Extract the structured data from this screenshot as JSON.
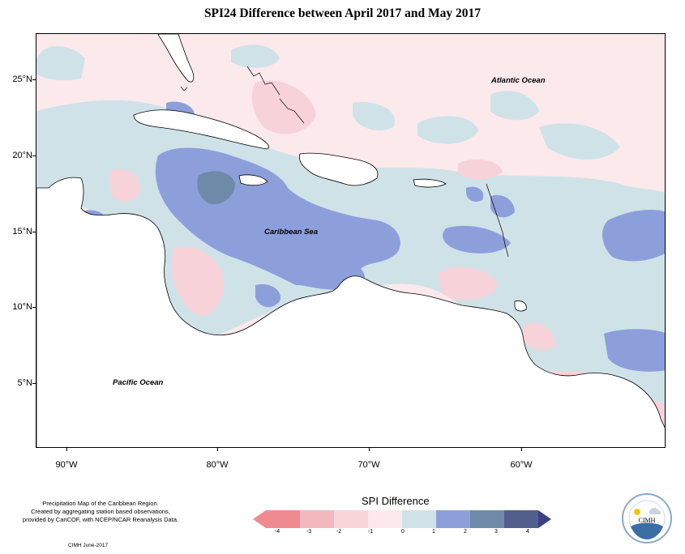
{
  "title": "SPI24 Difference between April 2017 and May 2017",
  "map": {
    "y_axis_labels": [
      "25°N",
      "20°N",
      "15°N",
      "10°N",
      "5°N"
    ],
    "x_axis_labels": [
      "90°W",
      "80°W",
      "70°W",
      "60°W"
    ],
    "labels": {
      "atlantic": "Atlantic Ocean",
      "caribbean": "Caribbean Sea",
      "pacific": "Pacific Ocean"
    },
    "colors": {
      "ocean_neutral": "#fbe9ec",
      "light_blue": "#cfe2e8",
      "mid_blue": "#8d9fdb",
      "dark_blue": "#6f8aa8",
      "light_pink": "#f7d2d8",
      "pink": "#f2b9c2",
      "land": "#ffffff"
    }
  },
  "legend": {
    "title": "SPI Difference",
    "ticks": [
      "-4",
      "-3",
      "-2",
      "-1",
      "0",
      "1",
      "2",
      "3",
      "4"
    ],
    "colors": [
      "#ef8a90",
      "#f2b8be",
      "#f8d6da",
      "#fbe9ec",
      "#cfe2e8",
      "#8d9fdb",
      "#6f8aa8",
      "#525e8c"
    ],
    "arrow_left_color": "#ef8a90",
    "arrow_right_color": "#3a3f87"
  },
  "notes": {
    "line1": "Precipitation Map of the Caribbean Region.",
    "line2": "Created by aggregating station based observations,",
    "line3": "provided by CariCOF, with NCEP/NCAR Reanalysis Data.",
    "credit": "CIMH June-2017"
  },
  "logo": {
    "name": "CIMH"
  }
}
